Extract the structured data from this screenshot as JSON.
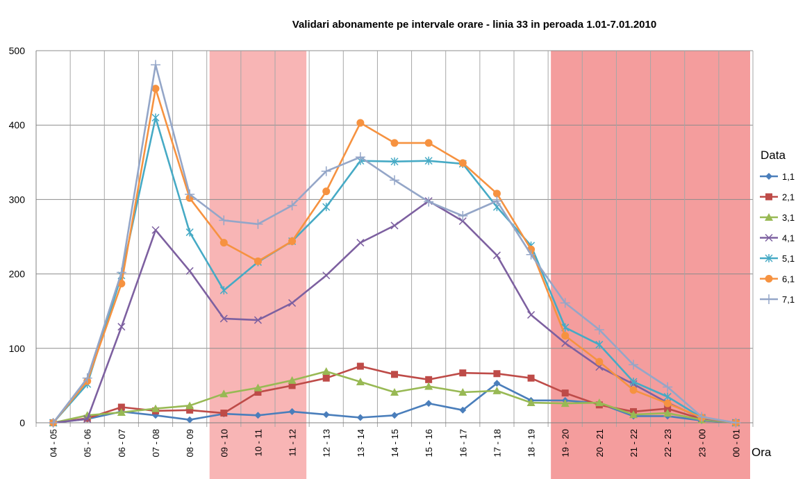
{
  "chart_data": {
    "type": "line",
    "title": "Validari abonamente  pe intervale orare - linia 33 in peroada 1.01-7.01.2010",
    "xlabel": "Ora",
    "ylabel": "",
    "legend_title": "Data",
    "legend_position": "right",
    "grid": true,
    "ylim": [
      0,
      500
    ],
    "yticks": [
      0,
      100,
      200,
      300,
      400,
      500
    ],
    "categories": [
      "04 - 05",
      "05 - 06",
      "06 - 07",
      "07 - 08",
      "08 - 09",
      "09 - 10",
      "10 - 11",
      "11 - 12",
      "12 - 13",
      "13 - 14",
      "14 - 15",
      "15 - 16",
      "16 - 17",
      "17 - 18",
      "18 - 19",
      "19 - 20",
      "20 - 21",
      "21 - 22",
      "22 - 23",
      "23 - 00",
      "00 - 01"
    ],
    "highlight_ranges": [
      {
        "from": "09 - 10",
        "to": "11 - 12",
        "color": "#f7a8a8"
      },
      {
        "from": "19 - 20",
        "to": "00 - 01",
        "color": "#f28c8c"
      }
    ],
    "series": [
      {
        "name": "1,1",
        "color": "#4a7ebb",
        "marker": "diamond",
        "values": [
          0,
          5,
          15,
          10,
          4,
          12,
          10,
          15,
          11,
          7,
          10,
          26,
          17,
          53,
          30,
          30,
          26,
          9,
          9,
          3,
          0
        ]
      },
      {
        "name": "2,1",
        "color": "#be4b48",
        "marker": "square",
        "values": [
          0,
          6,
          21,
          16,
          17,
          13,
          41,
          50,
          60,
          76,
          65,
          58,
          67,
          66,
          60,
          40,
          24,
          15,
          19,
          5,
          0
        ]
      },
      {
        "name": "3,1",
        "color": "#98b954",
        "marker": "triangle",
        "values": [
          0,
          10,
          14,
          19,
          23,
          39,
          47,
          57,
          69,
          55,
          41,
          49,
          41,
          43,
          27,
          26,
          27,
          11,
          13,
          4,
          0
        ]
      },
      {
        "name": "4,1",
        "color": "#7d60a0",
        "marker": "x",
        "values": [
          0,
          5,
          129,
          259,
          204,
          140,
          138,
          161,
          198,
          242,
          265,
          298,
          271,
          225,
          145,
          107,
          75,
          52,
          27,
          6,
          0
        ]
      },
      {
        "name": "5,1",
        "color": "#46aac5",
        "marker": "asterisk",
        "values": [
          0,
          52,
          198,
          410,
          256,
          178,
          216,
          244,
          290,
          352,
          351,
          352,
          348,
          290,
          238,
          128,
          105,
          55,
          35,
          7,
          0
        ]
      },
      {
        "name": "6,1",
        "color": "#f69240",
        "marker": "circle",
        "values": [
          0,
          56,
          187,
          449,
          302,
          242,
          217,
          244,
          311,
          403,
          376,
          376,
          349,
          308,
          233,
          117,
          82,
          44,
          26,
          7,
          0
        ]
      },
      {
        "name": "7,1",
        "color": "#94a6c8",
        "marker": "plus",
        "values": [
          0,
          60,
          202,
          481,
          307,
          272,
          267,
          292,
          338,
          357,
          326,
          297,
          278,
          298,
          226,
          161,
          125,
          78,
          48,
          8,
          0
        ]
      }
    ]
  }
}
